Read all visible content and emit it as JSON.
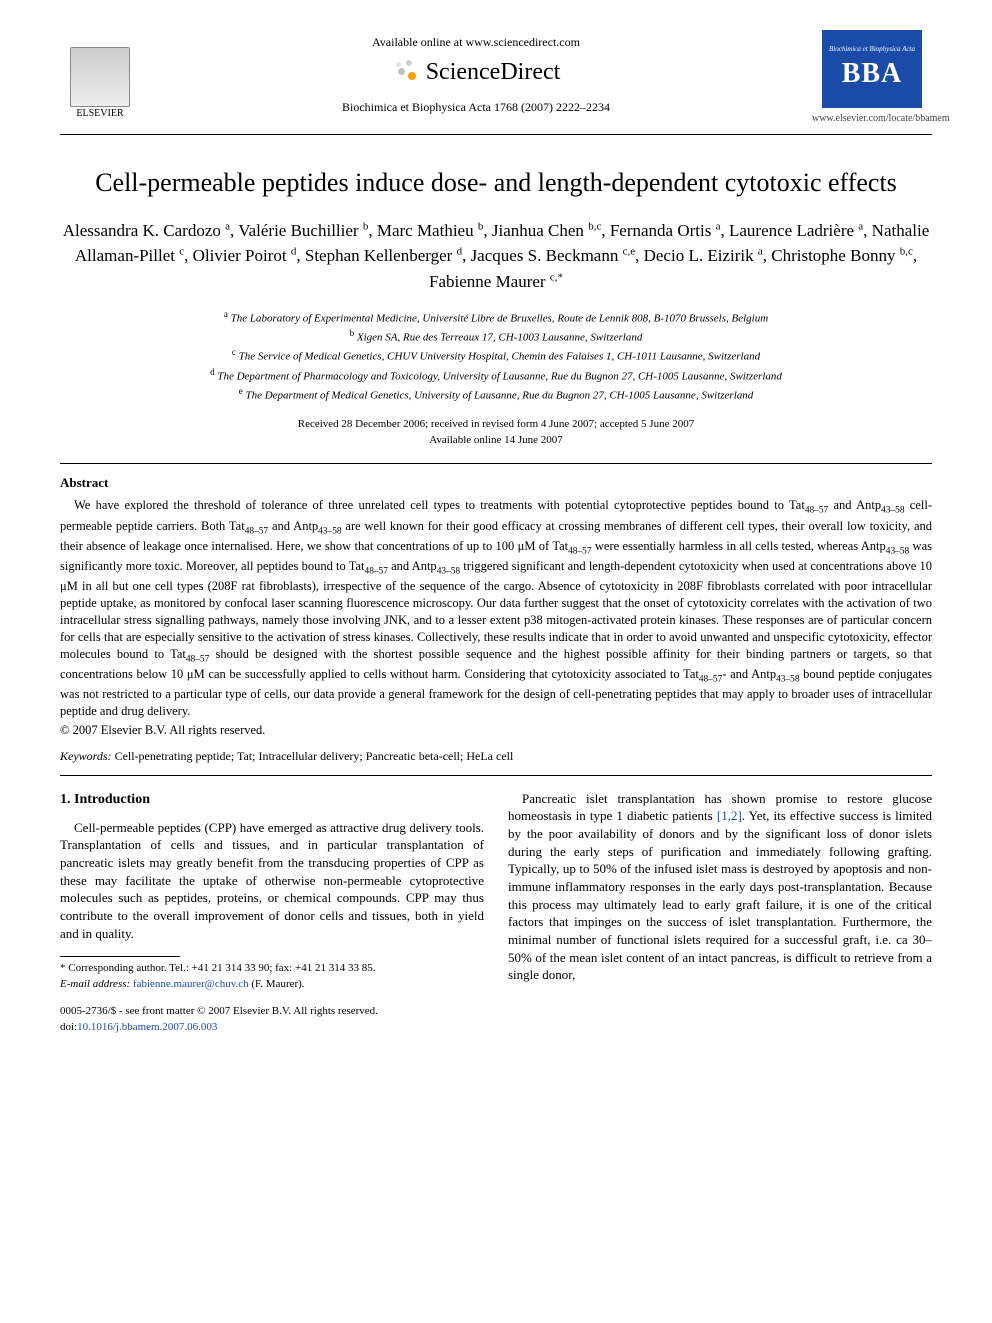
{
  "header": {
    "publisher_name": "ELSEVIER",
    "available_line": "Available online at www.sciencedirect.com",
    "sciencedirect_text": "ScienceDirect",
    "journal_ref": "Biochimica et Biophysica Acta 1768 (2007) 2222–2234",
    "bba_top": "Biochimica et Biophysica Acta",
    "bba_big": "BBA",
    "bba_url": "www.elsevier.com/locate/bbamem"
  },
  "article": {
    "title": "Cell-permeable peptides induce dose- and length-dependent cytotoxic effects",
    "authors_html": "Alessandra K. Cardozo <sup>a</sup>, Valérie Buchillier <sup>b</sup>, Marc Mathieu <sup>b</sup>, Jianhua Chen <sup>b,c</sup>, Fernanda Ortis <sup>a</sup>, Laurence Ladrière <sup>a</sup>, Nathalie Allaman-Pillet <sup>c</sup>, Olivier Poirot <sup>d</sup>, Stephan Kellenberger <sup>d</sup>, Jacques S. Beckmann <sup>c,e</sup>, Decio L. Eizirik <sup>a</sup>, Christophe Bonny <sup>b,c</sup>, Fabienne Maurer <sup>c,*</sup>",
    "affiliations": [
      {
        "sup": "a",
        "text": "The Laboratory of Experimental Medicine, Université Libre de Bruxelles, Route de Lennik 808, B-1070 Brussels, Belgium"
      },
      {
        "sup": "b",
        "text": "Xigen SA, Rue des Terreaux 17, CH-1003 Lausanne, Switzerland"
      },
      {
        "sup": "c",
        "text": "The Service of Medical Genetics, CHUV University Hospital, Chemin des Falaises 1, CH-1011 Lausanne, Switzerland"
      },
      {
        "sup": "d",
        "text": "The Department of Pharmacology and Toxicology, University of Lausanne, Rue du Bugnon 27, CH-1005 Lausanne, Switzerland"
      },
      {
        "sup": "e",
        "text": "The Department of Medical Genetics, University of Lausanne, Rue du Bugnon 27, CH-1005 Lausanne, Switzerland"
      }
    ],
    "dates_line1": "Received 28 December 2006; received in revised form 4 June 2007; accepted 5 June 2007",
    "dates_line2": "Available online 14 June 2007"
  },
  "abstract": {
    "heading": "Abstract",
    "body_html": "We have explored the threshold of tolerance of three unrelated cell types to treatments with potential cytoprotective peptides bound to Tat<sub>48–57</sub> and Antp<sub>43–58</sub> cell-permeable peptide carriers. Both Tat<sub>48–57</sub> and Antp<sub>43–58</sub> are well known for their good efficacy at crossing membranes of different cell types, their overall low toxicity, and their absence of leakage once internalised. Here, we show that concentrations of up to 100 μM of Tat<sub>48–57</sub> were essentially harmless in all cells tested, whereas Antp<sub>43–58</sub> was significantly more toxic. Moreover, all peptides bound to Tat<sub>48–57</sub> and Antp<sub>43–58</sub> triggered significant and length-dependent cytotoxicity when used at concentrations above 10 μM in all but one cell types (208F rat fibroblasts), irrespective of the sequence of the cargo. Absence of cytotoxicity in 208F fibroblasts correlated with poor intracellular peptide uptake, as monitored by confocal laser scanning fluorescence microscopy. Our data further suggest that the onset of cytotoxicity correlates with the activation of two intracellular stress signalling pathways, namely those involving JNK, and to a lesser extent p38 mitogen-activated protein kinases. These responses are of particular concern for cells that are especially sensitive to the activation of stress kinases. Collectively, these results indicate that in order to avoid unwanted and unspecific cytotoxicity, effector molecules bound to Tat<sub>48–57</sub> should be designed with the shortest possible sequence and the highest possible affinity for their binding partners or targets, so that concentrations below 10 μM can be successfully applied to cells without harm. Considering that cytotoxicity associated to Tat<sub>48–57</sub>- and Antp<sub>43–58</sub> bound peptide conjugates was not restricted to a particular type of cells, our data provide a general framework for the design of cell-penetrating peptides that may apply to broader uses of intracellular peptide and drug delivery.",
    "copyright": "© 2007 Elsevier B.V. All rights reserved.",
    "keywords_label": "Keywords:",
    "keywords_value": "Cell-penetrating peptide; Tat; Intracellular delivery; Pancreatic beta-cell; HeLa cell"
  },
  "intro": {
    "heading": "1. Introduction",
    "col1_p1": "Cell-permeable peptides (CPP) have emerged as attractive drug delivery tools. Transplantation of cells and tissues, and in particular transplantation of pancreatic islets may greatly benefit from the transducing properties of CPP as these may facilitate the uptake of otherwise non-permeable cytoprotective molecules such as peptides, proteins, or chemical compounds. CPP may thus contribute to the overall improvement of donor cells and tissues, both in yield and in quality.",
    "col2_p1_html": "Pancreatic islet transplantation has shown promise to restore glucose homeostasis in type 1 diabetic patients <a class=\"ref-link\" href=\"#\">[1,2]</a>. Yet, its effective success is limited by the poor availability of donors and by the significant loss of donor islets during the early steps of purification and immediately following grafting. Typically, up to 50% of the infused islet mass is destroyed by apoptosis and non-immune inflammatory responses in the early days post-transplantation. Because this process may ultimately lead to early graft failure, it is one of the critical factors that impinges on the success of islet transplantation. Furthermore, the minimal number of functional islets required for a successful graft, i.e. ca 30–50% of the mean islet content of an intact pancreas, is difficult to retrieve from a single donor,"
  },
  "footnote": {
    "corr_line": "* Corresponding author. Tel.: +41 21 314 33 90; fax: +41 21 314 33 85.",
    "email_label": "E-mail address:",
    "email": "fabienne.maurer@chuv.ch",
    "email_person": "(F. Maurer)."
  },
  "footer": {
    "issn_line": "0005-2736/$ - see front matter © 2007 Elsevier B.V. All rights reserved.",
    "doi_label": "doi:",
    "doi": "10.1016/j.bbamem.2007.06.003"
  },
  "colors": {
    "link": "#1a4ba8",
    "bba_bg": "#1a4ba8",
    "text": "#000000",
    "bg": "#ffffff"
  }
}
